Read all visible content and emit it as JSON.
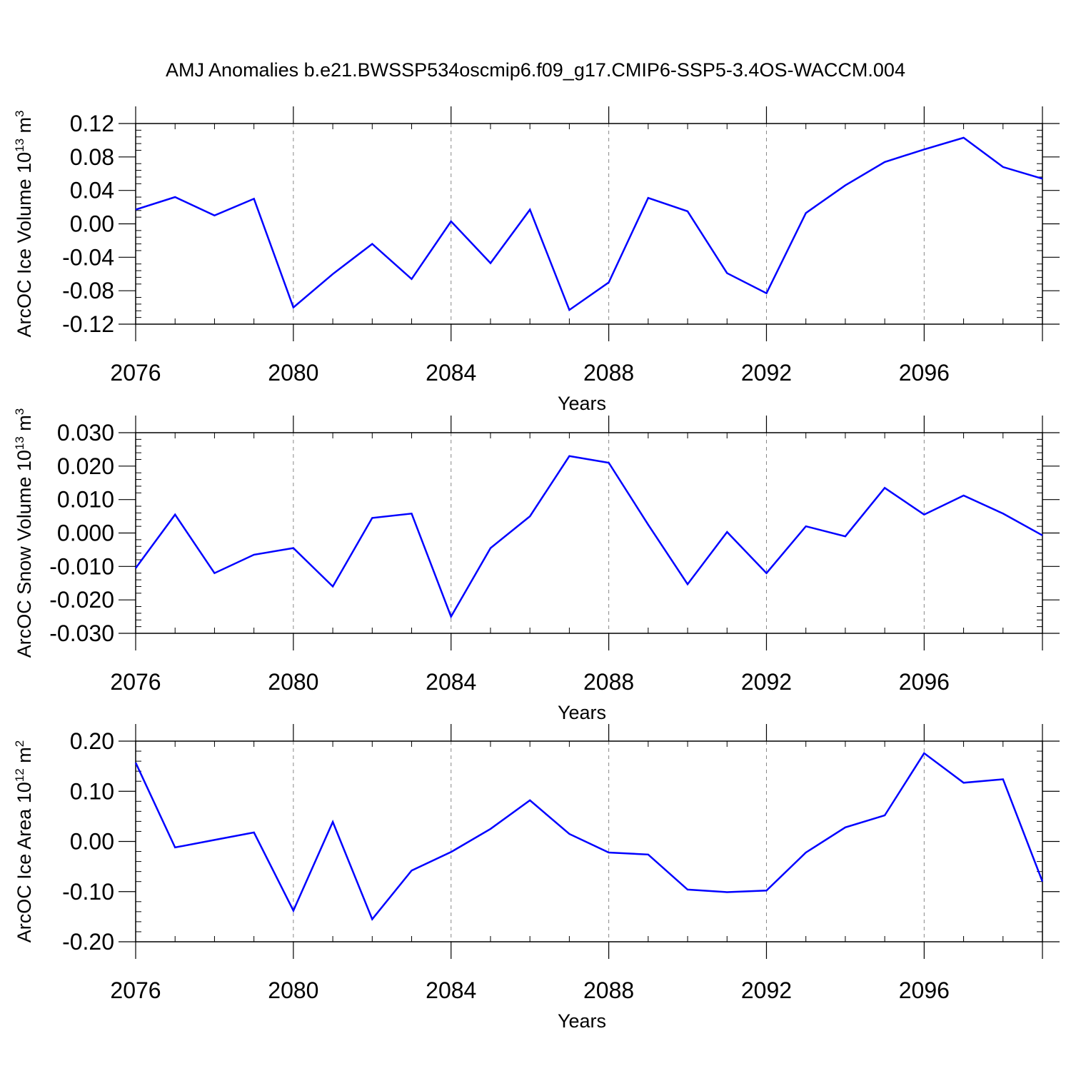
{
  "title": "AMJ Anomalies b.e21.BWSSP534oscmip6.f09_g17.CMIP6-SSP5-3.4OS-WACCM.004",
  "colors": {
    "series": "#0000ff",
    "axis": "#000000",
    "grid": "#888888",
    "background": "#ffffff"
  },
  "chart_data": [
    {
      "type": "line",
      "xlabel": "Years",
      "ylabel": {
        "prefix": "ArcOC Ice Volume 10",
        "exp": "13",
        "unit": " m",
        "unit_exp": "3"
      },
      "x": [
        2076,
        2077,
        2078,
        2079,
        2080,
        2081,
        2082,
        2083,
        2084,
        2085,
        2086,
        2087,
        2088,
        2089,
        2090,
        2091,
        2092,
        2093,
        2094,
        2095,
        2096,
        2097,
        2098,
        2099
      ],
      "series": [
        {
          "name": "ArcOC Ice Volume",
          "values": [
            0.017,
            0.032,
            0.01,
            0.03,
            -0.1,
            -0.06,
            -0.024,
            -0.066,
            0.003,
            -0.047,
            0.017,
            -0.103,
            -0.07,
            0.031,
            0.015,
            -0.059,
            -0.083,
            0.013,
            0.046,
            0.074,
            0.089,
            0.103,
            0.068,
            0.054
          ]
        }
      ],
      "xlim": [
        2076,
        2099
      ],
      "ylim": [
        -0.12,
        0.12
      ],
      "xticks": [
        2076,
        2080,
        2084,
        2088,
        2092,
        2096
      ],
      "xtick_labels": [
        "2076",
        "2080",
        "2084",
        "2088",
        "2092",
        "2096"
      ],
      "yticks": [
        -0.12,
        -0.08,
        -0.04,
        0.0,
        0.04,
        0.08,
        0.12
      ],
      "ytick_labels": [
        "-0.12",
        "-0.08",
        "-0.04",
        "0.00",
        "0.04",
        "0.08",
        "0.12"
      ],
      "yminor_step": 0.008,
      "grid": "x-dashed"
    },
    {
      "type": "line",
      "xlabel": "Years",
      "ylabel": {
        "prefix": "ArcOC Snow Volume 10",
        "exp": "13",
        "unit": " m",
        "unit_exp": "3"
      },
      "x": [
        2076,
        2077,
        2078,
        2079,
        2080,
        2081,
        2082,
        2083,
        2084,
        2085,
        2086,
        2087,
        2088,
        2089,
        2090,
        2091,
        2092,
        2093,
        2094,
        2095,
        2096,
        2097,
        2098,
        2099
      ],
      "series": [
        {
          "name": "ArcOC Snow Volume",
          "values": [
            -0.0105,
            0.0055,
            -0.012,
            -0.0065,
            -0.0045,
            -0.016,
            0.0045,
            0.0058,
            -0.025,
            -0.0045,
            0.005,
            0.023,
            0.021,
            0.0025,
            -0.0153,
            0.0003,
            -0.012,
            0.002,
            -0.001,
            0.0135,
            0.0055,
            0.0112,
            0.0058,
            -0.0007
          ]
        }
      ],
      "xlim": [
        2076,
        2099
      ],
      "ylim": [
        -0.03,
        0.03
      ],
      "xticks": [
        2076,
        2080,
        2084,
        2088,
        2092,
        2096
      ],
      "xtick_labels": [
        "2076",
        "2080",
        "2084",
        "2088",
        "2092",
        "2096"
      ],
      "yticks": [
        -0.03,
        -0.02,
        -0.01,
        0.0,
        0.01,
        0.02,
        0.03
      ],
      "ytick_labels": [
        "-0.030",
        "-0.020",
        "-0.010",
        "0.000",
        "0.010",
        "0.020",
        "0.030"
      ],
      "yminor_step": 0.002,
      "grid": "x-dashed"
    },
    {
      "type": "line",
      "xlabel": "Years",
      "ylabel": {
        "prefix": "ArcOC Ice Area 10",
        "exp": "12",
        "unit": " m",
        "unit_exp": "2"
      },
      "x": [
        2076,
        2077,
        2078,
        2079,
        2080,
        2081,
        2082,
        2083,
        2084,
        2085,
        2086,
        2087,
        2088,
        2089,
        2090,
        2091,
        2092,
        2093,
        2094,
        2095,
        2096,
        2097,
        2098,
        2099
      ],
      "series": [
        {
          "name": "ArcOC Ice Area",
          "values": [
            0.157,
            -0.012,
            0.003,
            0.018,
            -0.138,
            0.039,
            -0.155,
            -0.058,
            -0.021,
            0.025,
            0.082,
            0.015,
            -0.022,
            -0.026,
            -0.096,
            -0.101,
            -0.098,
            -0.022,
            0.028,
            0.052,
            0.176,
            0.117,
            0.124,
            -0.08
          ]
        }
      ],
      "xlim": [
        2076,
        2099
      ],
      "ylim": [
        -0.2,
        0.2
      ],
      "xticks": [
        2076,
        2080,
        2084,
        2088,
        2092,
        2096
      ],
      "xtick_labels": [
        "2076",
        "2080",
        "2084",
        "2088",
        "2092",
        "2096"
      ],
      "yticks": [
        -0.2,
        -0.1,
        0.0,
        0.1,
        0.2
      ],
      "ytick_labels": [
        "-0.20",
        "-0.10",
        "0.00",
        "0.10",
        "0.20"
      ],
      "yminor_step": 0.02,
      "grid": "x-dashed"
    }
  ]
}
